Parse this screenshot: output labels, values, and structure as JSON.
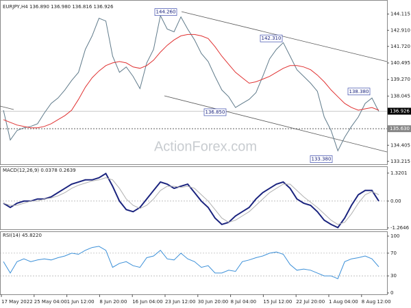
{
  "chart_data": [
    {
      "type": "line",
      "title": "EURJPY,H4  136.890 136.980 136.816 136.926",
      "watermark": "ActionForex.com",
      "ylim": [
        133.0,
        144.95
      ],
      "yticks": [
        144.115,
        {
          "value": 142.91,
          "label": "142.910"
        },
        {
          "value": 141.72,
          "label": "141.720"
        },
        140.495,
        {
          "value": 139.27,
          "label": "139.270"
        },
        138.045,
        134.405,
        133.215
      ],
      "current_price": {
        "value": 136.926,
        "label": "136.926"
      },
      "level": {
        "value": 135.63,
        "label": "135.630"
      },
      "annotations": [
        {
          "value": 144.26,
          "label": "144.260"
        },
        {
          "value": 142.31,
          "label": "142.310"
        },
        {
          "value": 136.85,
          "label": "136.850"
        },
        {
          "value": 138.38,
          "label": "138.380"
        },
        {
          "value": 133.38,
          "label": "133.380"
        }
      ],
      "x_labels": [
        "17 May 2022",
        "25 May 04:00",
        "1 Jun 12:00",
        "8 Jun 20:00",
        "16 Jun 04:00",
        "23 Jun 12:00",
        "30 Jun 20:00",
        "8 Jul 04:00",
        "15 Jul 12:00",
        "22 Jul 20:00",
        "1 Aug 04:00",
        "8 Aug 12:00"
      ],
      "series": [
        {
          "color": "#5f7a8a",
          "values": [
            137.0,
            134.8,
            135.5,
            135.7,
            135.8,
            136.0,
            136.8,
            137.5,
            137.9,
            138.5,
            139.2,
            139.8,
            141.5,
            142.5,
            143.8,
            143.6,
            141.0,
            139.8,
            140.2,
            139.5,
            138.6,
            140.5,
            141.5,
            144.0,
            143.0,
            142.8,
            143.9,
            143.0,
            142.2,
            141.2,
            140.6,
            139.5,
            138.5,
            138.0,
            137.2,
            137.5,
            137.8,
            138.3,
            139.5,
            140.8,
            141.5,
            142.0,
            141.0,
            140.0,
            139.5,
            139.0,
            138.4,
            136.5,
            135.5,
            134.0,
            135.0,
            135.8,
            136.5,
            137.5,
            137.9,
            136.9
          ]
        },
        {
          "color": "#e03030",
          "values": [
            136.3,
            136.1,
            135.9,
            135.8,
            135.7,
            135.7,
            135.8,
            136.0,
            136.3,
            136.6,
            137.0,
            137.8,
            138.7,
            139.4,
            139.9,
            140.3,
            140.5,
            140.6,
            140.5,
            140.2,
            140.1,
            140.3,
            140.7,
            141.3,
            141.8,
            142.2,
            142.5,
            142.6,
            142.6,
            142.5,
            142.3,
            141.7,
            141.0,
            140.4,
            139.8,
            139.4,
            139.0,
            139.1,
            139.3,
            139.5,
            139.8,
            140.1,
            140.3,
            140.3,
            140.2,
            140.0,
            139.6,
            139.1,
            138.5,
            138.0,
            137.5,
            137.2,
            137.0,
            137.1,
            137.2,
            137.0
          ]
        }
      ]
    },
    {
      "type": "line",
      "title": "MACD(12,26,9) 0.0378 0.2639",
      "ylim": [
        -1.33,
        1.64
      ],
      "yticks": [
        1.3201,
        {
          "value": 0,
          "label": "0.00"
        },
        -1.2646
      ],
      "series": [
        {
          "color": "#1a237e",
          "values": [
            -0.1,
            -0.3,
            -0.1,
            0.0,
            0.0,
            0.1,
            0.1,
            0.2,
            0.4,
            0.6,
            0.8,
            0.9,
            1.0,
            1.0,
            1.1,
            1.3,
            0.7,
            0.0,
            -0.4,
            -0.5,
            -0.3,
            0.1,
            0.5,
            0.9,
            0.8,
            0.6,
            0.7,
            0.8,
            0.4,
            0.0,
            -0.3,
            -0.8,
            -1.1,
            -1.0,
            -0.7,
            -0.5,
            -0.3,
            0.1,
            0.4,
            0.6,
            0.8,
            0.9,
            0.6,
            0.1,
            -0.1,
            -0.2,
            -0.5,
            -0.9,
            -1.1,
            -1.25,
            -0.8,
            -0.2,
            0.3,
            0.5,
            0.5,
            0.0
          ]
        },
        {
          "color": "#b0b0b0",
          "values": [
            -0.1,
            -0.2,
            -0.2,
            -0.1,
            0.0,
            0.0,
            0.1,
            0.15,
            0.25,
            0.4,
            0.6,
            0.75,
            0.85,
            0.95,
            1.0,
            1.1,
            1.0,
            0.6,
            0.1,
            -0.2,
            -0.35,
            -0.2,
            0.1,
            0.5,
            0.7,
            0.7,
            0.65,
            0.7,
            0.6,
            0.3,
            0.0,
            -0.4,
            -0.8,
            -1.0,
            -0.9,
            -0.7,
            -0.5,
            -0.2,
            0.1,
            0.4,
            0.6,
            0.8,
            0.8,
            0.5,
            0.2,
            -0.05,
            -0.3,
            -0.6,
            -0.9,
            -1.1,
            -1.0,
            -0.6,
            -0.1,
            0.3,
            0.45,
            0.3
          ]
        }
      ]
    },
    {
      "type": "line",
      "title": "RSI(14) 45.8220",
      "ylim": [
        -2.4,
        108.4
      ],
      "yticks": [
        100,
        70,
        30,
        0
      ],
      "series": [
        {
          "color": "#3a8fd8",
          "values": [
            55,
            35,
            55,
            60,
            55,
            58,
            60,
            58,
            62,
            65,
            70,
            68,
            75,
            80,
            82,
            75,
            45,
            52,
            55,
            48,
            45,
            62,
            65,
            75,
            60,
            58,
            70,
            60,
            55,
            45,
            48,
            35,
            35,
            40,
            38,
            55,
            58,
            62,
            65,
            70,
            72,
            68,
            50,
            40,
            42,
            40,
            35,
            30,
            30,
            25,
            55,
            60,
            62,
            65,
            60,
            46
          ]
        }
      ]
    }
  ]
}
